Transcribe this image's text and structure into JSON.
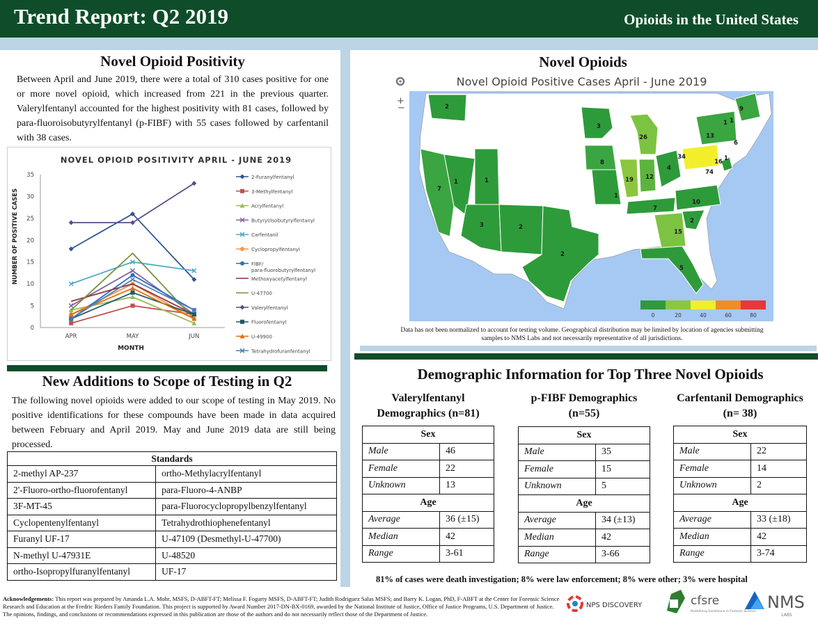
{
  "header": {
    "title": "Trend Report: Q2 2019",
    "subtitle": "Opioids in the United States"
  },
  "positivity": {
    "title": "Novel Opioid Positivity",
    "text": "Between April and June 2019, there were a total of 310 cases positive for one or more novel opioid, which increased from 221 in the previous quarter. Valerylfentanyl accounted for the highest positivity with 81 cases, followed by para-fluoroisobutyrylfentanyl (p-FIBF) with 55 cases followed by carfentanil with 38 cases."
  },
  "chart_data": {
    "type": "line",
    "title": "NOVEL OPIOID POSITIVITY APRIL - JUNE 2019",
    "xlabel": "MONTH",
    "ylabel": "NUMBER OF POSITIVE CASES",
    "categories": [
      "APR",
      "MAY",
      "JUN"
    ],
    "ylim": [
      0,
      35
    ],
    "yticks": [
      0,
      5,
      10,
      15,
      20,
      25,
      30,
      35
    ],
    "legend_position": "right",
    "series": [
      {
        "name": "2-Furanylfentanyl",
        "values": [
          18,
          26,
          11
        ],
        "color": "#2f5597",
        "marker": "diamond"
      },
      {
        "name": "3-Methylfentanyl",
        "values": [
          1,
          5,
          3
        ],
        "color": "#c0504d",
        "marker": "square"
      },
      {
        "name": "Acrylfentanyl",
        "values": [
          4,
          7,
          1
        ],
        "color": "#9bbb59",
        "marker": "triangle"
      },
      {
        "name": "Butyryl/Isobutyrylfentanyl",
        "values": [
          5,
          13,
          3
        ],
        "color": "#8064a2",
        "marker": "x"
      },
      {
        "name": "Carfentanil",
        "values": [
          10,
          15,
          13
        ],
        "color": "#4bacc6",
        "marker": "x"
      },
      {
        "name": "Cyclopropylfentanyl",
        "values": [
          3,
          10,
          2
        ],
        "color": "#f79646",
        "marker": "circle"
      },
      {
        "name": "FIBF/para-fluorobutyrylfentanyl",
        "values": [
          2,
          12,
          4
        ],
        "color": "#2c6fbb",
        "marker": "circle"
      },
      {
        "name": "Methoxyacetylfentanyl",
        "values": [
          6,
          10,
          3
        ],
        "color": "#943634",
        "marker": "none"
      },
      {
        "name": "U-47700",
        "values": [
          4,
          17,
          2
        ],
        "color": "#76923c",
        "marker": "none"
      },
      {
        "name": "Valerylfentanyl",
        "values": [
          24,
          24,
          33
        ],
        "color": "#5f4b8b",
        "marker": "diamond"
      },
      {
        "name": "Fluorofentanyl",
        "values": [
          2,
          8,
          3
        ],
        "color": "#205867",
        "marker": "square"
      },
      {
        "name": "U-49900",
        "values": [
          3,
          9,
          2
        ],
        "color": "#e36c09",
        "marker": "triangle"
      },
      {
        "name": "Tetrahydrofuranfentanyl",
        "values": [
          2,
          11,
          4
        ],
        "color": "#4f81bd",
        "marker": "x"
      }
    ]
  },
  "additions": {
    "title": "New Additions to Scope of Testing in Q2",
    "text": "The following novel opioids were added to our scope of testing in May 2019. No positive identifications for these compounds have been made in data acquired between February and April 2019. May and June 2019 data are still being processed.",
    "table_header": "Standards",
    "rows": [
      [
        "2-methyl AP-237",
        "ortho-Methylacrylfentanyl"
      ],
      [
        "2'-Fluoro-ortho-fluorofentanyl",
        "para-Fluoro-4-ANBP"
      ],
      [
        "3F-MT-45",
        "para-Fluorocyclopropylbenzylfentanyl"
      ],
      [
        "Cyclopentenylfentanyl",
        "Tetrahydrothiophenefentanyl"
      ],
      [
        "Furanyl UF-17",
        "U-47109 (Desmethyl-U-47700)"
      ],
      [
        "N-methyl U-47931E",
        "U-48520"
      ],
      [
        "ortho-Isopropylfuranylfentanyl",
        "UF-17"
      ]
    ]
  },
  "map": {
    "section_title": "Novel Opioids",
    "title": "Novel Opioid Positive Cases April - June 2019",
    "legend_ticks": [
      "0",
      "20",
      "40",
      "60",
      "80"
    ],
    "legend_colors": [
      "#2e9b3a",
      "#8cc63f",
      "#f2ef2a",
      "#f08c2a",
      "#e53935"
    ],
    "note": "Data has not been normalized to account for testing volume. Geographical distribution may be limited by location of agencies submitting samples to NMS Labs and not necessarily representative of all jurisdictions.",
    "state_values": [
      "2",
      "3",
      "1",
      "9",
      "1",
      "13",
      "26",
      "6",
      "1",
      "8",
      "34",
      "16",
      "74",
      "7",
      "1",
      "1",
      "19",
      "12",
      "4",
      "1",
      "3",
      "2",
      "7",
      "10",
      "2",
      "15",
      "2",
      "5"
    ]
  },
  "demographics": {
    "title": "Demographic Information for Top Three Novel Opioids",
    "sex_label": "Sex",
    "age_label": "Age",
    "row_labels": {
      "male": "Male",
      "female": "Female",
      "unknown": "Unknown",
      "average": "Average",
      "median": "Median",
      "range": "Range"
    },
    "groups": [
      {
        "title": "Valerylfentanyl Demographics (n=81)",
        "male": "46",
        "female": "22",
        "unknown": "13",
        "average": "36 (±15)",
        "median": "42",
        "range": "3-61"
      },
      {
        "title": "p-FIBF Demographics (n=55)",
        "male": "35",
        "female": "15",
        "unknown": "5",
        "average": "34 (±13)",
        "median": "42",
        "range": "3-66"
      },
      {
        "title": "Carfentanil Demographics (n= 38)",
        "male": "22",
        "female": "14",
        "unknown": "2",
        "average": "33 (±18)",
        "median": "42",
        "range": "3-74"
      }
    ],
    "footnote": "81% of cases were death investigation; 8% were law enforcement; 8% were other; 3% were hospital"
  },
  "acknowledgements": {
    "label": "Acknowledgements:",
    "text": "This report was prepared by Amanda L.A. Mohr, MSFS, D-ABFT-FT; Melissa F. Fogarty MSFS, D-ABFT-FT; Judith Rodriguez Salas MSFS; and Barry K. Logan, PhD, F-ABFT at the Center for Forensic Science Research and Education at the Fredric Rieders Family Foundation. This project is supported by Award Number 2017-DN-BX-0169, awarded by the National Institute of Justice, Office of Justice Programs, U.S. Department of Justice. The opinions, findings, and conclusions or recommendations expressed in this publication are those of the authors and do not necessarily reflect those of the Department of Justice."
  },
  "logos": {
    "nps": "NPS DISCOVERY",
    "cfsre": "cfsre",
    "cfsre_tag": "Redefining Excellence in Forensic Science",
    "nms": "NMS",
    "nms_sub": "LABS"
  }
}
